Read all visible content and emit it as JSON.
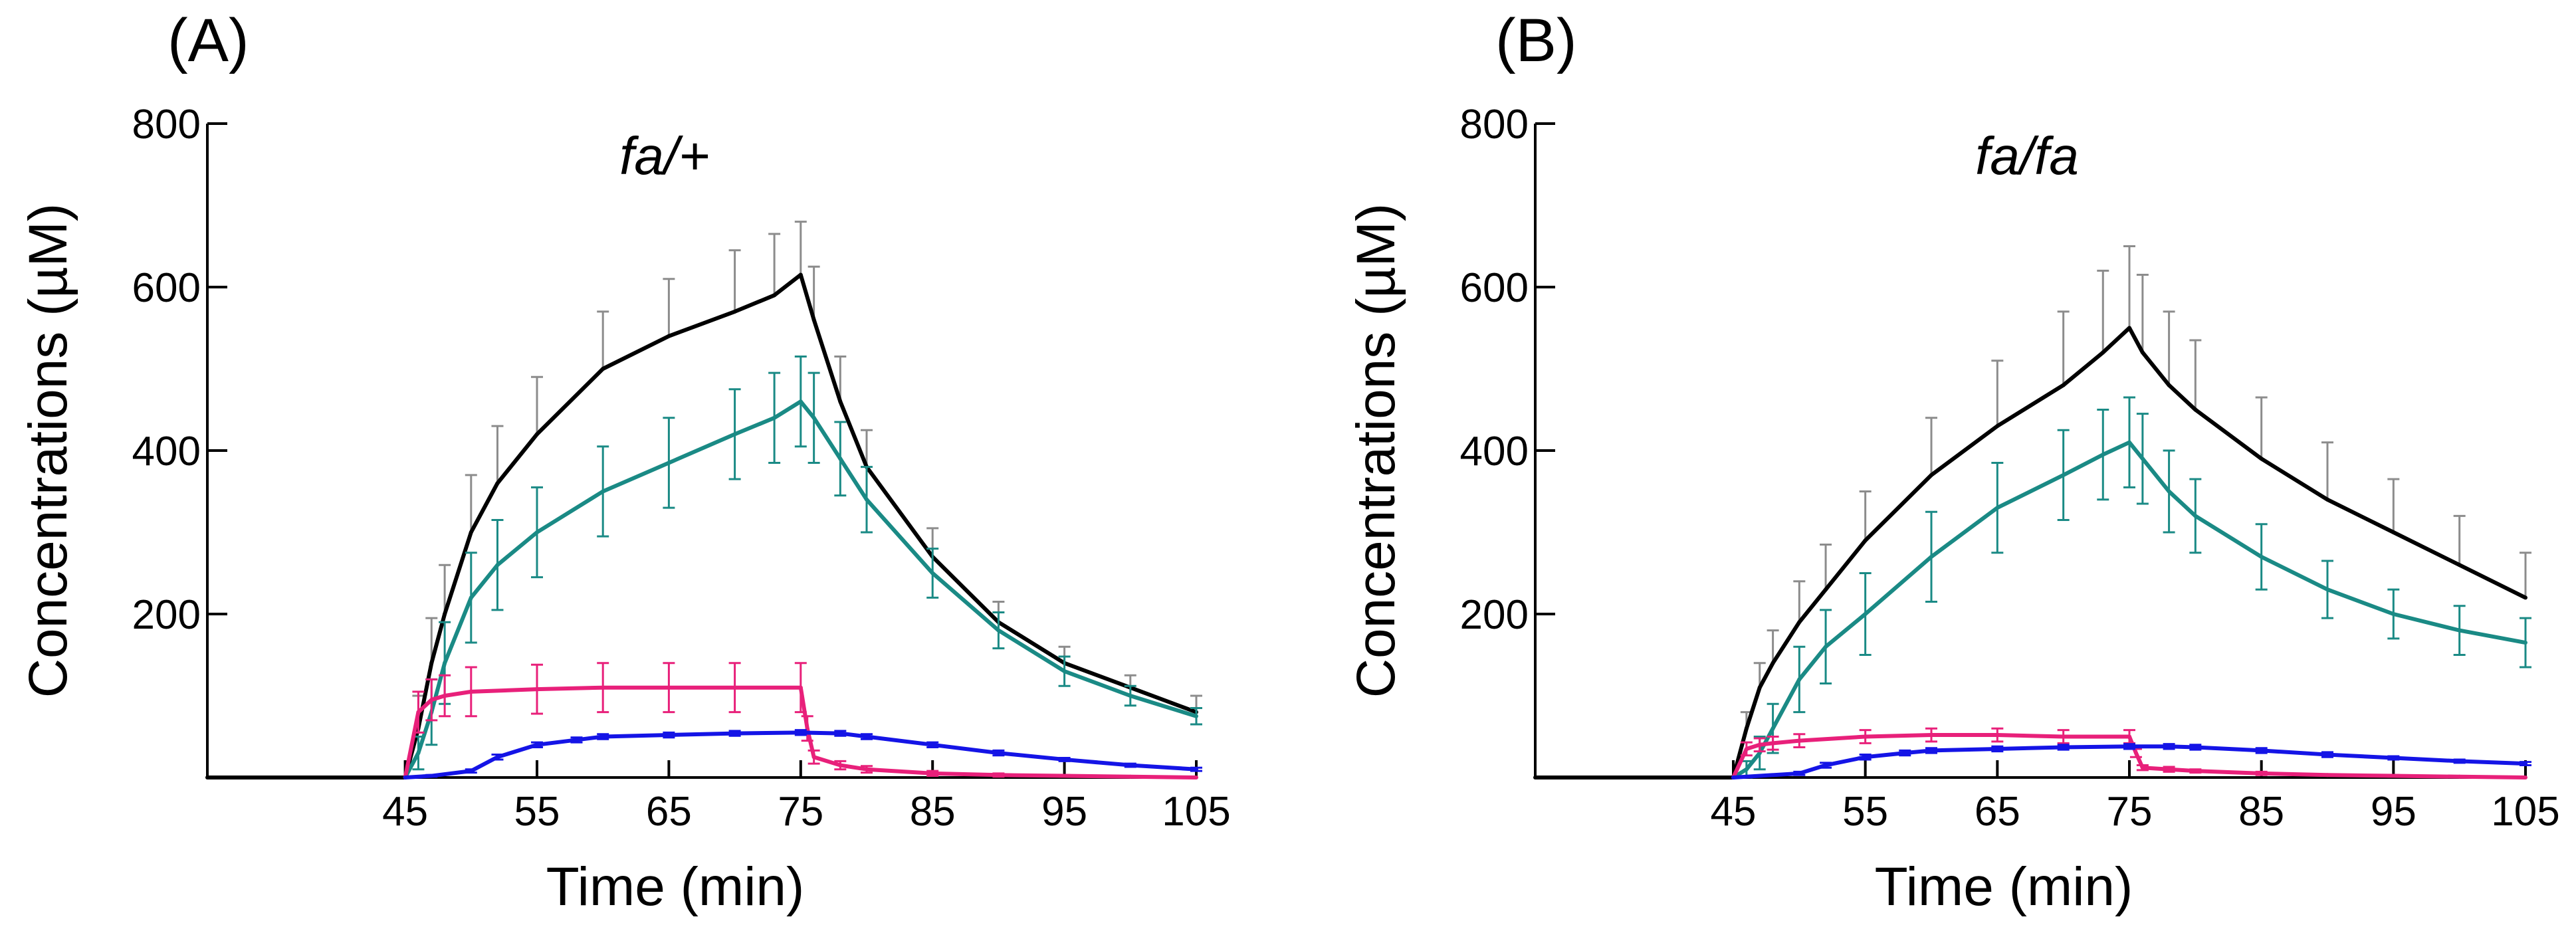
{
  "chart_data": [
    {
      "type": "line",
      "panel_label": "(A)",
      "title": "fa/+",
      "xlabel": "Time (min)",
      "ylabel": "Concentrations (µM)",
      "xlim": [
        30,
        105
      ],
      "ylim": [
        0,
        800
      ],
      "xticks": [
        45,
        55,
        65,
        75,
        85,
        95,
        105
      ],
      "xtick_labels": [
        "45",
        "55",
        "65",
        "75",
        "85",
        "95",
        "105"
      ],
      "yticks": [
        200,
        400,
        600,
        800
      ],
      "ytick_labels": [
        "200",
        "400",
        "600",
        "800"
      ],
      "series": [
        {
          "name": "gray",
          "color": "#8c8c8c",
          "error_bars": "upper",
          "x": [
            30,
            44,
            45,
            46,
            47,
            48,
            50,
            52,
            55,
            60,
            65,
            70,
            73,
            75,
            76,
            78,
            80,
            85,
            90,
            95,
            100,
            105
          ],
          "values": [
            0,
            0,
            0,
            60,
            140,
            200,
            300,
            360,
            420,
            500,
            540,
            570,
            590,
            610,
            560,
            460,
            380,
            270,
            190,
            140,
            110,
            85
          ],
          "errors": [
            0,
            0,
            0,
            40,
            55,
            60,
            70,
            70,
            70,
            70,
            70,
            75,
            75,
            70,
            65,
            55,
            45,
            35,
            25,
            20,
            15,
            15
          ]
        },
        {
          "name": "black",
          "color": "#000000",
          "x": [
            30,
            44,
            45,
            46,
            47,
            48,
            50,
            52,
            55,
            60,
            65,
            70,
            73,
            75,
            76,
            78,
            80,
            85,
            90,
            95,
            100,
            105
          ],
          "values": [
            0,
            0,
            0,
            60,
            140,
            200,
            300,
            360,
            420,
            500,
            540,
            570,
            590,
            615,
            560,
            460,
            380,
            270,
            190,
            140,
            110,
            80
          ]
        },
        {
          "name": "teal",
          "color": "#1a8a85",
          "error_bars": "both",
          "x": [
            45,
            46,
            47,
            48,
            50,
            52,
            55,
            60,
            65,
            70,
            73,
            75,
            76,
            78,
            80,
            85,
            90,
            95,
            100,
            105
          ],
          "values": [
            0,
            30,
            80,
            140,
            220,
            260,
            300,
            350,
            385,
            420,
            440,
            460,
            440,
            390,
            340,
            250,
            180,
            130,
            100,
            75
          ],
          "errors": [
            0,
            20,
            40,
            50,
            55,
            55,
            55,
            55,
            55,
            55,
            55,
            55,
            55,
            45,
            40,
            30,
            22,
            18,
            12,
            10
          ]
        },
        {
          "name": "pink",
          "color": "#e8207a",
          "error_bars": "both",
          "x": [
            45,
            46,
            47,
            48,
            50,
            55,
            60,
            65,
            70,
            75,
            75.5,
            76,
            78,
            80,
            85,
            90,
            95,
            100,
            105
          ],
          "values": [
            0,
            80,
            95,
            100,
            105,
            108,
            110,
            110,
            110,
            110,
            60,
            25,
            15,
            10,
            5,
            3,
            2,
            1,
            0
          ],
          "errors": [
            0,
            25,
            25,
            25,
            30,
            30,
            30,
            30,
            30,
            30,
            15,
            8,
            5,
            4,
            3,
            2,
            1,
            1,
            0
          ]
        },
        {
          "name": "blue",
          "color": "#1414e6",
          "error_bars": "both",
          "x": [
            45,
            47,
            50,
            52,
            55,
            58,
            60,
            65,
            70,
            75,
            78,
            80,
            85,
            90,
            95,
            100,
            105
          ],
          "values": [
            0,
            2,
            8,
            25,
            40,
            46,
            50,
            52,
            54,
            55,
            54,
            50,
            40,
            30,
            22,
            15,
            10
          ],
          "errors": [
            0,
            1,
            2,
            3,
            3,
            3,
            3,
            3,
            3,
            3,
            3,
            3,
            3,
            3,
            2,
            2,
            2
          ]
        }
      ]
    },
    {
      "type": "line",
      "panel_label": "(B)",
      "title": "fa/fa",
      "xlabel": "Time (min)",
      "ylabel": "Concentrations (µM)",
      "xlim": [
        30,
        105
      ],
      "ylim": [
        0,
        800
      ],
      "xticks": [
        45,
        55,
        65,
        75,
        85,
        95,
        105
      ],
      "xtick_labels": [
        "45",
        "55",
        "65",
        "75",
        "85",
        "95",
        "105"
      ],
      "yticks": [
        200,
        400,
        600,
        800
      ],
      "ytick_labels": [
        "200",
        "400",
        "600",
        "800"
      ],
      "series": [
        {
          "name": "gray",
          "color": "#8c8c8c",
          "error_bars": "upper",
          "x": [
            30,
            44,
            45,
            46,
            47,
            48,
            50,
            52,
            55,
            60,
            65,
            70,
            73,
            75,
            76,
            78,
            80,
            85,
            90,
            95,
            100,
            105
          ],
          "values": [
            0,
            0,
            0,
            60,
            110,
            140,
            190,
            230,
            290,
            370,
            430,
            480,
            520,
            550,
            520,
            480,
            450,
            390,
            340,
            300,
            260,
            220
          ],
          "errors": [
            0,
            0,
            0,
            20,
            30,
            40,
            50,
            55,
            60,
            70,
            80,
            90,
            100,
            100,
            95,
            90,
            85,
            75,
            70,
            65,
            60,
            55
          ]
        },
        {
          "name": "black",
          "color": "#000000",
          "x": [
            30,
            44,
            45,
            46,
            47,
            48,
            50,
            52,
            55,
            60,
            65,
            70,
            73,
            75,
            76,
            78,
            80,
            85,
            90,
            95,
            100,
            105
          ],
          "values": [
            0,
            0,
            0,
            60,
            110,
            140,
            190,
            230,
            290,
            370,
            430,
            480,
            520,
            550,
            520,
            480,
            450,
            390,
            340,
            300,
            260,
            220
          ]
        },
        {
          "name": "teal",
          "color": "#1a8a85",
          "error_bars": "both",
          "x": [
            45,
            46,
            47,
            48,
            50,
            52,
            55,
            60,
            65,
            70,
            73,
            75,
            76,
            78,
            80,
            85,
            90,
            95,
            100,
            105
          ],
          "values": [
            0,
            10,
            30,
            60,
            120,
            160,
            200,
            270,
            330,
            370,
            395,
            410,
            390,
            350,
            320,
            270,
            230,
            200,
            180,
            165
          ],
          "errors": [
            0,
            10,
            20,
            30,
            40,
            45,
            50,
            55,
            55,
            55,
            55,
            55,
            55,
            50,
            45,
            40,
            35,
            30,
            30,
            30
          ]
        },
        {
          "name": "pink",
          "color": "#e8207a",
          "error_bars": "both",
          "x": [
            45,
            46,
            47,
            48,
            50,
            55,
            60,
            65,
            70,
            75,
            75.5,
            76,
            78,
            80,
            85,
            90,
            95,
            100,
            105
          ],
          "values": [
            0,
            35,
            40,
            42,
            45,
            50,
            52,
            52,
            50,
            50,
            30,
            12,
            10,
            8,
            5,
            3,
            2,
            1,
            0
          ],
          "errors": [
            0,
            8,
            8,
            8,
            8,
            8,
            8,
            8,
            8,
            8,
            5,
            3,
            3,
            2,
            2,
            1,
            1,
            1,
            0
          ]
        },
        {
          "name": "blue",
          "color": "#1414e6",
          "error_bars": "both",
          "x": [
            45,
            50,
            52,
            55,
            58,
            60,
            65,
            70,
            75,
            78,
            80,
            85,
            90,
            95,
            100,
            105
          ],
          "values": [
            0,
            5,
            15,
            25,
            30,
            33,
            35,
            37,
            38,
            38,
            37,
            33,
            28,
            24,
            20,
            17
          ],
          "errors": [
            0,
            2,
            3,
            3,
            3,
            3,
            3,
            3,
            3,
            3,
            3,
            3,
            3,
            2,
            2,
            2
          ]
        }
      ]
    }
  ]
}
